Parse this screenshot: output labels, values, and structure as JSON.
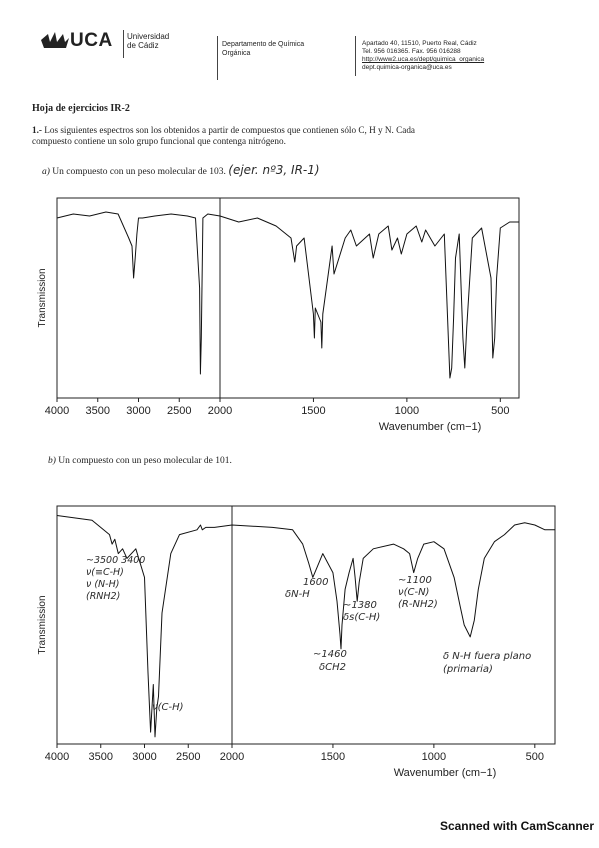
{
  "header": {
    "logo_text": "UCA",
    "university": [
      "Universidad",
      "de Cádiz"
    ],
    "department": [
      "Departamento de Química",
      "Orgánica"
    ],
    "address": [
      "Apartado 40, 11510, Puerto Real, Cádiz",
      "Tel. 956 016365. Fax. 956 016288",
      "http://www2.uca.es/dept/quimica_organica",
      "dept.quimica-organica@uca.es"
    ]
  },
  "title": "Hoja de ejercicios IR-2",
  "problem": {
    "number": "1.-",
    "text_line1": "Los siguientes espectros son los obtenidos a partir de compuestos que contienen sólo C, H y N. Cada",
    "text_line2": "compuesto contiene un solo grupo funcional que contenga nitrógeno."
  },
  "part_a": {
    "label": "a)",
    "text": "Un compuesto con un peso molecular de 103.",
    "handwritten": "(ejer. nº3, IR-1)"
  },
  "part_b": {
    "label": "b)",
    "text": "Un compuesto con un peso molecular de 101."
  },
  "chart_data": [
    {
      "type": "line",
      "ylabel": "Transmission",
      "xlabel": "Wavenumber (cm−1)",
      "xlim": [
        4000,
        400
      ],
      "ylim": [
        0,
        100
      ],
      "x_ticks": [
        4000,
        3500,
        3000,
        2500,
        2000,
        1500,
        1000,
        500
      ],
      "x_tick_labels": [
        "4000",
        "3500",
        "3000",
        "2500",
        "2000",
        "1500",
        "1000",
        "500"
      ],
      "series": [
        {
          "x": [
            4000,
            3800,
            3600,
            3400,
            3250,
            3120,
            3080,
            3060,
            3040,
            3020,
            3000,
            2950,
            2800,
            2600,
            2400,
            2300,
            2250,
            2240,
            2230,
            2220,
            2210,
            2150,
            2000,
            1900,
            1800,
            1700,
            1620,
            1600,
            1590,
            1550,
            1500,
            1495,
            1490,
            1460,
            1455,
            1450,
            1400,
            1390,
            1330,
            1300,
            1270,
            1200,
            1180,
            1150,
            1100,
            1080,
            1050,
            1030,
            1000,
            950,
            920,
            900,
            850,
            800,
            770,
            760,
            750,
            740,
            720,
            700,
            690,
            680,
            650,
            600,
            550,
            540,
            530,
            520,
            500,
            450,
            400
          ],
          "y": [
            90,
            92,
            91,
            93,
            92,
            80,
            76,
            60,
            70,
            82,
            90,
            90,
            91,
            92,
            91,
            90,
            55,
            12,
            30,
            60,
            90,
            92,
            91,
            88,
            90,
            86,
            80,
            68,
            76,
            80,
            42,
            30,
            45,
            38,
            25,
            42,
            76,
            62,
            80,
            84,
            76,
            82,
            70,
            82,
            86,
            74,
            80,
            72,
            82,
            86,
            78,
            84,
            76,
            82,
            10,
            15,
            40,
            70,
            82,
            30,
            15,
            35,
            80,
            85,
            60,
            20,
            30,
            60,
            85,
            88,
            88
          ]
        }
      ]
    },
    {
      "type": "line",
      "ylabel": "Transmission",
      "xlabel": "Wavenumber (cm−1)",
      "xlim": [
        4000,
        400
      ],
      "ylim": [
        0,
        100
      ],
      "x_ticks": [
        4000,
        3500,
        3000,
        2500,
        2000,
        1500,
        1000,
        500
      ],
      "x_tick_labels": [
        "4000",
        "3500",
        "3000",
        "2500",
        "2000",
        "1500",
        "1000",
        "500"
      ],
      "series": [
        {
          "x": [
            4000,
            3800,
            3600,
            3400,
            3370,
            3340,
            3300,
            3250,
            3200,
            3100,
            3000,
            2960,
            2930,
            2900,
            2880,
            2860,
            2840,
            2800,
            2700,
            2600,
            2400,
            2360,
            2340,
            2300,
            2200,
            2000,
            1800,
            1700,
            1650,
            1620,
            1600,
            1580,
            1550,
            1500,
            1480,
            1465,
            1460,
            1455,
            1440,
            1420,
            1400,
            1390,
            1380,
            1370,
            1350,
            1300,
            1200,
            1150,
            1120,
            1100,
            1080,
            1050,
            1000,
            950,
            900,
            870,
            850,
            820,
            800,
            780,
            750,
            700,
            650,
            600,
            550,
            500,
            450,
            400
          ],
          "y": [
            96,
            95,
            94,
            88,
            84,
            86,
            80,
            82,
            78,
            82,
            70,
            30,
            5,
            25,
            3,
            15,
            20,
            55,
            80,
            88,
            90,
            92,
            90,
            91,
            91,
            92,
            91,
            90,
            84,
            76,
            70,
            74,
            80,
            72,
            60,
            46,
            40,
            50,
            65,
            72,
            78,
            70,
            60,
            68,
            78,
            82,
            84,
            82,
            80,
            72,
            78,
            84,
            85,
            82,
            70,
            58,
            50,
            45,
            52,
            65,
            78,
            85,
            88,
            92,
            93,
            92,
            90,
            90
          ]
        }
      ]
    }
  ],
  "annotations_b": [
    {
      "id": "oh-nh",
      "lines": [
        "~3500 3400",
        "ν(≡C-H)",
        "ν (N-H)",
        "(RNH2)"
      ]
    },
    {
      "id": "ch-stretch",
      "lines": [
        "ν(C-H)"
      ]
    },
    {
      "id": "nh-bend",
      "lines": [
        "1600",
        "δN-H"
      ]
    },
    {
      "id": "ch2-bend",
      "lines": [
        "~1460",
        "δCH2"
      ]
    },
    {
      "id": "ch3-bend",
      "lines": [
        "~1380",
        "δs(C-H)"
      ]
    },
    {
      "id": "cn-stretch",
      "lines": [
        "~1100",
        "ν(C-N)",
        "(R-NH2)"
      ]
    },
    {
      "id": "nh-oop",
      "lines": [
        "δ N-H fuera plano",
        "(primaria)"
      ]
    }
  ],
  "footer": "Scanned with CamScanner"
}
